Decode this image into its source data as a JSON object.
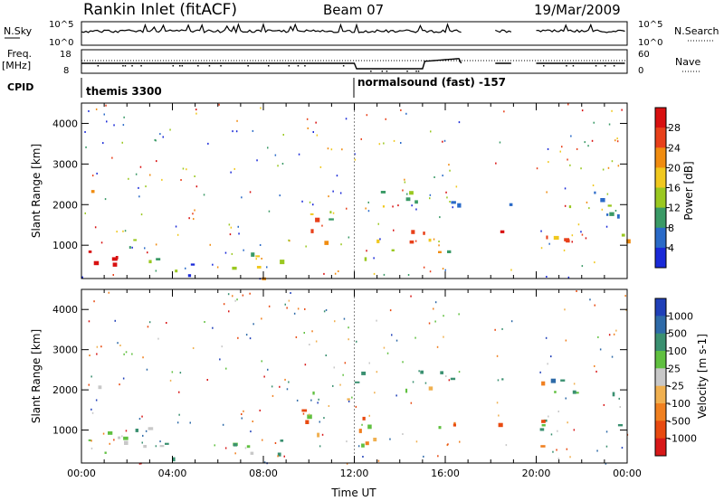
{
  "header": {
    "title": "Rankin Inlet (fitACF)",
    "beam": "Beam 07",
    "date": "19/Mar/2009"
  },
  "strip_labels": {
    "nsky": "N.Sky",
    "nsky_ticks": [
      "10^5",
      "10^0"
    ],
    "nsearch_ticks": [
      "10^5",
      "10^0"
    ],
    "nsearch": "N.Search",
    "freq": "Freq.",
    "freq_unit": "[MHz]",
    "freq_ticks": [
      "18",
      "8"
    ],
    "nave_ticks": [
      "60",
      "0"
    ],
    "nave": "Nave",
    "cpid": "CPID"
  },
  "cpid_modes": [
    {
      "label": "themis 3300",
      "start_hour": 0
    },
    {
      "label": "normalsound (fast) -157",
      "start_hour": 12
    }
  ],
  "chart_data": [
    {
      "type": "heatmap",
      "name": "power-panel",
      "ylabel": "Slant Range [km]",
      "xlabel": "",
      "yticks": [
        "1000",
        "2000",
        "3000",
        "4000"
      ],
      "ylim": [
        180,
        4500
      ],
      "xlim_hours": [
        0,
        24
      ],
      "colorbar_label": "Power [dB]",
      "colorbar_ticks": [
        "4",
        "8",
        "12",
        "16",
        "20",
        "24",
        "28"
      ],
      "colorbar_colors": [
        "#1a2ad8",
        "#2a6ac8",
        "#3a9a66",
        "#9ac820",
        "#f0c81e",
        "#f08c10",
        "#e8401a",
        "#d81010"
      ],
      "data_gaps_hours": [
        [
          16.7,
          18.1
        ],
        [
          18.9,
          20.0
        ]
      ]
    },
    {
      "type": "heatmap",
      "name": "velocity-panel",
      "ylabel": "Slant Range [km]",
      "xlabel": "Time UT",
      "yticks": [
        "1000",
        "2000",
        "3000",
        "4000"
      ],
      "xticks": [
        "00:00",
        "04:00",
        "08:00",
        "12:00",
        "16:00",
        "20:00",
        "00:00"
      ],
      "ylim": [
        180,
        4500
      ],
      "xlim_hours": [
        0,
        24
      ],
      "colorbar_label": "Velocity [m s-1]",
      "colorbar_ticks": [
        "1000",
        "500",
        "100",
        "25",
        "-25",
        "-100",
        "-500",
        "-1000"
      ],
      "colorbar_colors": [
        "#2040b8",
        "#2e6aa8",
        "#3a9070",
        "#60c040",
        "#c8c8c8",
        "#f0b050",
        "#f08020",
        "#e84a10",
        "#d81818"
      ],
      "data_gaps_hours": [
        [
          16.7,
          18.1
        ],
        [
          18.9,
          20.0
        ]
      ]
    }
  ]
}
